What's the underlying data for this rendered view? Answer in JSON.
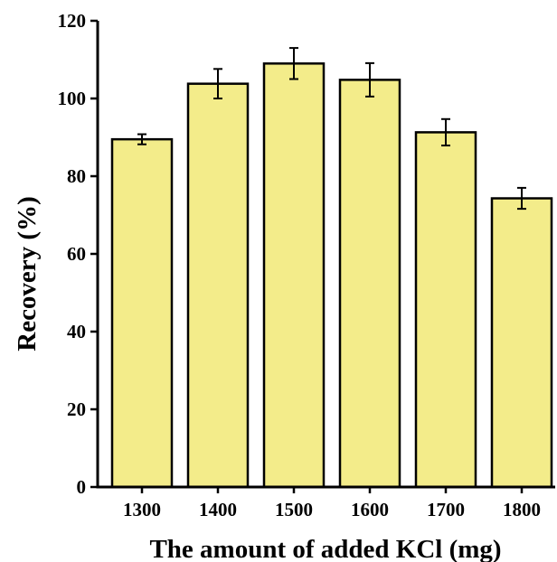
{
  "chart_data": {
    "type": "bar",
    "categories": [
      "1300",
      "1400",
      "1500",
      "1600",
      "1700",
      "1800"
    ],
    "values": [
      89.5,
      103.8,
      109.0,
      104.8,
      91.3,
      74.3
    ],
    "errors": [
      1.3,
      3.8,
      4.0,
      4.3,
      3.4,
      2.7
    ],
    "xlabel": "The amount of added KCl (mg)",
    "ylabel": "Recovery (%)",
    "ylim": [
      0,
      120
    ],
    "yticks": [
      "0",
      "20",
      "40",
      "60",
      "80",
      "100",
      "120"
    ],
    "bar_color": "#f3ec8a",
    "grid": false
  }
}
